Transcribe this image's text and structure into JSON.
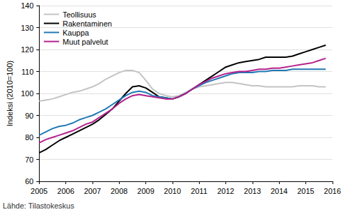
{
  "chart_data": {
    "type": "line",
    "x": [
      2005,
      2005.25,
      2005.5,
      2005.75,
      2006,
      2006.25,
      2006.5,
      2006.75,
      2007,
      2007.25,
      2007.5,
      2007.75,
      2008,
      2008.25,
      2008.5,
      2008.75,
      2009,
      2009.25,
      2009.5,
      2009.75,
      2010,
      2010.25,
      2010.5,
      2010.75,
      2011,
      2011.25,
      2011.5,
      2011.75,
      2012,
      2012.25,
      2012.5,
      2012.75,
      2013,
      2013.25,
      2013.5,
      2013.75,
      2014,
      2014.25,
      2014.5,
      2014.75,
      2015,
      2015.25,
      2015.5,
      2015.75
    ],
    "series": [
      {
        "name": "Teollisuus",
        "color": "#c3c3c3",
        "values": [
          96.5,
          97,
          97.5,
          98.5,
          99.5,
          100.5,
          101,
          102,
          103,
          104.5,
          106.5,
          108,
          109.5,
          110.5,
          110.5,
          109.5,
          106,
          102,
          100,
          99,
          98.5,
          99,
          100.5,
          102,
          103,
          103.5,
          104,
          104.5,
          105,
          105,
          104.5,
          104,
          103.5,
          103.5,
          103,
          103,
          103,
          103,
          103,
          103.5,
          103.5,
          103.5,
          103,
          103
        ]
      },
      {
        "name": "Rakentaminen",
        "color": "#000000",
        "values": [
          73,
          74.5,
          76.5,
          78.5,
          80,
          81.5,
          83,
          84.5,
          86,
          88,
          90.5,
          93,
          96.5,
          100,
          103,
          103.5,
          102.5,
          100.5,
          98.5,
          98,
          97.5,
          98.5,
          100,
          102,
          104,
          106,
          108,
          110,
          112,
          113,
          114,
          114.5,
          115,
          115.5,
          116.5,
          116.5,
          116.5,
          116.5,
          117,
          118,
          119,
          120,
          121,
          122
        ]
      },
      {
        "name": "Kauppa",
        "color": "#1f78b4",
        "values": [
          81,
          82.5,
          84,
          85,
          85.5,
          86.5,
          88,
          89,
          90,
          91.5,
          93,
          95,
          97,
          99,
          100.5,
          101,
          100.5,
          99,
          98.5,
          98,
          97.5,
          98.5,
          100,
          102,
          103.5,
          105,
          106,
          107,
          108,
          109,
          109.5,
          109.5,
          109.5,
          110,
          110,
          110.5,
          110.5,
          110.5,
          111,
          111,
          111,
          111,
          111,
          111
        ]
      },
      {
        "name": "Muut palvelut",
        "color": "#b4218c",
        "values": [
          77.5,
          79,
          80,
          81,
          82,
          83,
          84.5,
          86,
          87,
          89,
          91,
          93,
          95.5,
          97.5,
          99,
          99.5,
          99,
          98.5,
          98,
          97.5,
          97.5,
          98.5,
          100,
          102,
          104,
          105.5,
          107,
          108,
          109,
          109.5,
          110,
          110,
          110.5,
          111,
          111,
          111.5,
          111.5,
          112,
          112.5,
          113,
          113.5,
          114,
          115,
          116
        ]
      }
    ],
    "y_label": "Indeksi (2010=100)",
    "annotations": [
      "Lähde: Tilastokeskus"
    ],
    "xlim": [
      2005,
      2016
    ],
    "xticks": [
      2005,
      2006,
      2007,
      2008,
      2009,
      2010,
      2011,
      2012,
      2013,
      2014,
      2015,
      2016
    ],
    "ylim": [
      60,
      140
    ],
    "yticks": [
      60,
      70,
      80,
      90,
      100,
      110,
      120,
      130,
      140
    ],
    "grid": true,
    "legend": "top-left"
  }
}
